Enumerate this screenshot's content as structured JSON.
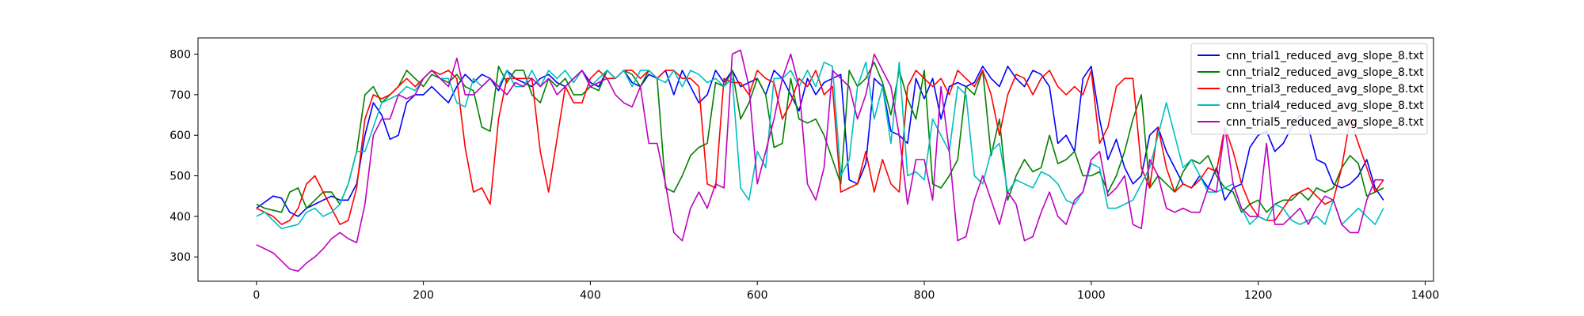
{
  "chart_data": {
    "type": "line",
    "title": "",
    "xlabel": "",
    "ylabel": "",
    "xlim": [
      -70,
      1410
    ],
    "ylim": [
      240,
      840
    ],
    "xticks": [
      0,
      200,
      400,
      600,
      800,
      1000,
      1200,
      1400
    ],
    "yticks": [
      300,
      400,
      500,
      600,
      700,
      800
    ],
    "grid": false,
    "legend_position": "top-right",
    "x": [
      0,
      10,
      20,
      30,
      40,
      50,
      60,
      70,
      80,
      90,
      100,
      110,
      120,
      130,
      140,
      150,
      160,
      170,
      180,
      190,
      200,
      210,
      220,
      230,
      240,
      250,
      260,
      270,
      280,
      290,
      300,
      310,
      320,
      330,
      340,
      350,
      360,
      370,
      380,
      390,
      400,
      410,
      420,
      430,
      440,
      450,
      460,
      470,
      480,
      490,
      500,
      510,
      520,
      530,
      540,
      550,
      560,
      570,
      580,
      590,
      600,
      610,
      620,
      630,
      640,
      650,
      660,
      670,
      680,
      690,
      700,
      710,
      720,
      730,
      740,
      750,
      760,
      770,
      780,
      790,
      800,
      810,
      820,
      830,
      840,
      850,
      860,
      870,
      880,
      890,
      900,
      910,
      920,
      930,
      940,
      950,
      960,
      970,
      980,
      990,
      1000,
      1010,
      1020,
      1030,
      1040,
      1050,
      1060,
      1070,
      1080,
      1090,
      1100,
      1110,
      1120,
      1130,
      1140,
      1150,
      1160,
      1170,
      1180,
      1190,
      1200,
      1210,
      1220,
      1230,
      1240,
      1250,
      1260,
      1270,
      1280,
      1290,
      1300,
      1310,
      1320,
      1330,
      1340,
      1350
    ],
    "series": [
      {
        "name": "cnn_trial1_reduced_avg_slope_8.txt",
        "color": "#0000ff",
        "values": [
          420,
          435,
          450,
          445,
          410,
          400,
          420,
          430,
          440,
          450,
          440,
          440,
          480,
          600,
          680,
          650,
          590,
          600,
          680,
          700,
          700,
          720,
          700,
          680,
          720,
          750,
          730,
          750,
          740,
          710,
          760,
          740,
          730,
          720,
          740,
          750,
          730,
          720,
          740,
          760,
          730,
          720,
          760,
          740,
          760,
          730,
          720,
          750,
          740,
          760,
          700,
          760,
          720,
          680,
          700,
          760,
          730,
          760,
          720,
          730,
          740,
          700,
          760,
          740,
          700,
          660,
          740,
          700,
          730,
          740,
          750,
          490,
          480,
          530,
          740,
          720,
          610,
          600,
          580,
          740,
          690,
          740,
          640,
          720,
          730,
          720,
          730,
          770,
          740,
          720,
          770,
          740,
          720,
          760,
          750,
          720,
          580,
          600,
          560,
          740,
          770,
          640,
          540,
          590,
          520,
          480,
          500,
          600,
          620,
          560,
          520,
          480,
          470,
          500,
          470,
          520,
          440,
          470,
          480,
          570,
          600,
          610,
          560,
          580,
          620,
          650,
          620,
          540,
          530,
          480,
          470,
          480,
          500,
          540,
          470,
          440
        ]
      },
      {
        "name": "cnn_trial2_reduced_avg_slope_8.txt",
        "color": "#008000",
        "values": [
          430,
          420,
          415,
          410,
          460,
          470,
          420,
          440,
          460,
          460,
          430,
          480,
          560,
          700,
          720,
          680,
          700,
          720,
          760,
          740,
          720,
          750,
          740,
          730,
          750,
          720,
          710,
          620,
          610,
          770,
          730,
          760,
          760,
          700,
          680,
          740,
          720,
          740,
          700,
          700,
          720,
          710,
          760,
          740,
          760,
          750,
          720,
          760,
          740,
          470,
          460,
          500,
          550,
          570,
          580,
          730,
          720,
          760,
          640,
          680,
          740,
          700,
          570,
          580,
          740,
          640,
          630,
          640,
          600,
          540,
          480,
          760,
          720,
          740,
          780,
          730,
          650,
          760,
          690,
          640,
          760,
          480,
          470,
          500,
          540,
          720,
          700,
          760,
          550,
          640,
          440,
          500,
          540,
          510,
          520,
          600,
          530,
          540,
          560,
          500,
          500,
          510,
          460,
          500,
          560,
          640,
          700,
          470,
          500,
          480,
          460,
          510,
          540,
          530,
          550,
          500,
          470,
          460,
          410,
          430,
          440,
          410,
          430,
          440,
          440,
          460,
          440,
          470,
          460,
          470,
          520,
          550,
          530,
          450,
          460,
          470
        ]
      },
      {
        "name": "cnn_trial3_reduced_avg_slope_8.txt",
        "color": "#ff0000",
        "values": [
          420,
          410,
          400,
          380,
          390,
          420,
          480,
          500,
          460,
          420,
          380,
          390,
          470,
          640,
          700,
          690,
          700,
          720,
          740,
          720,
          740,
          760,
          750,
          760,
          740,
          570,
          460,
          470,
          430,
          640,
          740,
          740,
          740,
          740,
          560,
          460,
          590,
          720,
          680,
          680,
          740,
          760,
          740,
          740,
          760,
          760,
          740,
          760,
          740,
          760,
          760,
          740,
          740,
          720,
          480,
          470,
          740,
          730,
          730,
          700,
          760,
          740,
          730,
          640,
          680,
          740,
          720,
          760,
          700,
          720,
          460,
          470,
          480,
          560,
          460,
          540,
          480,
          460,
          720,
          760,
          740,
          720,
          740,
          700,
          760,
          740,
          720,
          760,
          700,
          600,
          700,
          750,
          740,
          700,
          740,
          760,
          720,
          700,
          720,
          700,
          760,
          580,
          620,
          720,
          740,
          740,
          520,
          470,
          620,
          520,
          460,
          480,
          470,
          490,
          520,
          510,
          620,
          560,
          480,
          430,
          400,
          390,
          390,
          420,
          450,
          460,
          470,
          450,
          430,
          440,
          520,
          640,
          580,
          520,
          460,
          490
        ]
      },
      {
        "name": "cnn_trial4_reduced_avg_slope_8.txt",
        "color": "#00bfbf",
        "values": [
          400,
          410,
          390,
          370,
          375,
          380,
          410,
          420,
          400,
          410,
          430,
          480,
          560,
          560,
          620,
          680,
          690,
          700,
          720,
          710,
          740,
          760,
          740,
          740,
          680,
          670,
          740,
          720,
          740,
          720,
          760,
          720,
          720,
          760,
          720,
          760,
          740,
          760,
          730,
          760,
          720,
          740,
          760,
          740,
          760,
          720,
          760,
          760,
          740,
          730,
          760,
          720,
          760,
          750,
          730,
          740,
          720,
          740,
          470,
          440,
          560,
          520,
          740,
          740,
          760,
          720,
          760,
          720,
          780,
          770,
          500,
          540,
          720,
          780,
          640,
          720,
          580,
          780,
          500,
          510,
          490,
          640,
          600,
          560,
          720,
          700,
          500,
          480,
          560,
          580,
          460,
          490,
          480,
          470,
          510,
          500,
          480,
          440,
          430,
          460,
          530,
          520,
          420,
          420,
          430,
          440,
          480,
          520,
          600,
          680,
          600,
          520,
          540,
          500,
          460,
          460,
          470,
          480,
          420,
          380,
          400,
          390,
          430,
          420,
          390,
          380,
          390,
          400,
          380,
          440,
          380,
          400,
          420,
          400,
          380,
          420
        ]
      },
      {
        "name": "cnn_trial5_reduced_avg_slope_8.txt",
        "color": "#bf00bf",
        "values": [
          330,
          320,
          310,
          290,
          270,
          265,
          285,
          300,
          320,
          345,
          360,
          345,
          335,
          430,
          600,
          640,
          640,
          700,
          690,
          700,
          740,
          760,
          740,
          720,
          790,
          700,
          700,
          720,
          740,
          720,
          700,
          730,
          720,
          740,
          720,
          740,
          700,
          720,
          740,
          760,
          720,
          730,
          740,
          700,
          680,
          670,
          720,
          580,
          580,
          480,
          360,
          340,
          420,
          460,
          420,
          480,
          470,
          800,
          810,
          720,
          480,
          560,
          640,
          740,
          800,
          720,
          480,
          440,
          520,
          760,
          740,
          720,
          640,
          700,
          800,
          760,
          720,
          600,
          430,
          540,
          540,
          440,
          720,
          560,
          340,
          350,
          440,
          500,
          440,
          380,
          460,
          430,
          340,
          350,
          410,
          460,
          400,
          380,
          440,
          460,
          540,
          560,
          450,
          470,
          500,
          380,
          370,
          540,
          500,
          420,
          410,
          420,
          410,
          410,
          470,
          460,
          620,
          480,
          420,
          400,
          400,
          580,
          380,
          380,
          400,
          420,
          380,
          420,
          450,
          440,
          380,
          360,
          360,
          440,
          490,
          490
        ]
      }
    ]
  }
}
